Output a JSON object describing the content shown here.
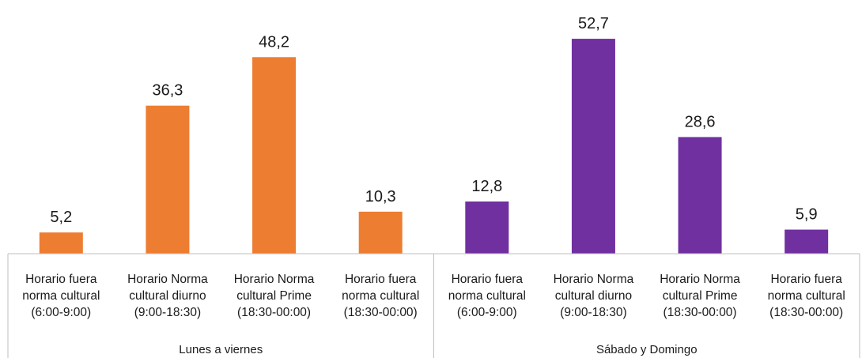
{
  "chart_data": {
    "type": "bar",
    "title": "",
    "xlabel": "",
    "ylabel": "",
    "ylim": [
      0,
      60
    ],
    "grid": false,
    "legend": "none",
    "groups": [
      {
        "name": "Lunes a viernes",
        "color": "#ED7D31",
        "categories": [
          [
            "Horario fuera",
            "norma cultural",
            "(6:00-9:00)"
          ],
          [
            "Horario Norma",
            "cultural diurno",
            "(9:00-18:30)"
          ],
          [
            "Horario Norma",
            "cultural Prime",
            "(18:30-00:00)"
          ],
          [
            "Horario fuera",
            "norma cultural",
            "(18:30-00:00)"
          ]
        ],
        "values": [
          5.2,
          36.3,
          48.2,
          10.3
        ],
        "labels": [
          "5,2",
          "36,3",
          "48,2",
          "10,3"
        ]
      },
      {
        "name": "Sábado y Domingo",
        "color": "#7030A0",
        "categories": [
          [
            "Horario fuera",
            "norma cultural",
            "(6:00-9:00)"
          ],
          [
            "Horario Norma",
            "cultural diurno",
            "(9:00-18:30)"
          ],
          [
            "Horario Norma",
            "cultural Prime",
            "(18:30-00:00)"
          ],
          [
            "Horario fuera",
            "norma cultural",
            "(18:30-00:00)"
          ]
        ],
        "values": [
          12.8,
          52.7,
          28.6,
          5.9
        ],
        "labels": [
          "12,8",
          "52,7",
          "28,6",
          "5,9"
        ]
      }
    ]
  }
}
